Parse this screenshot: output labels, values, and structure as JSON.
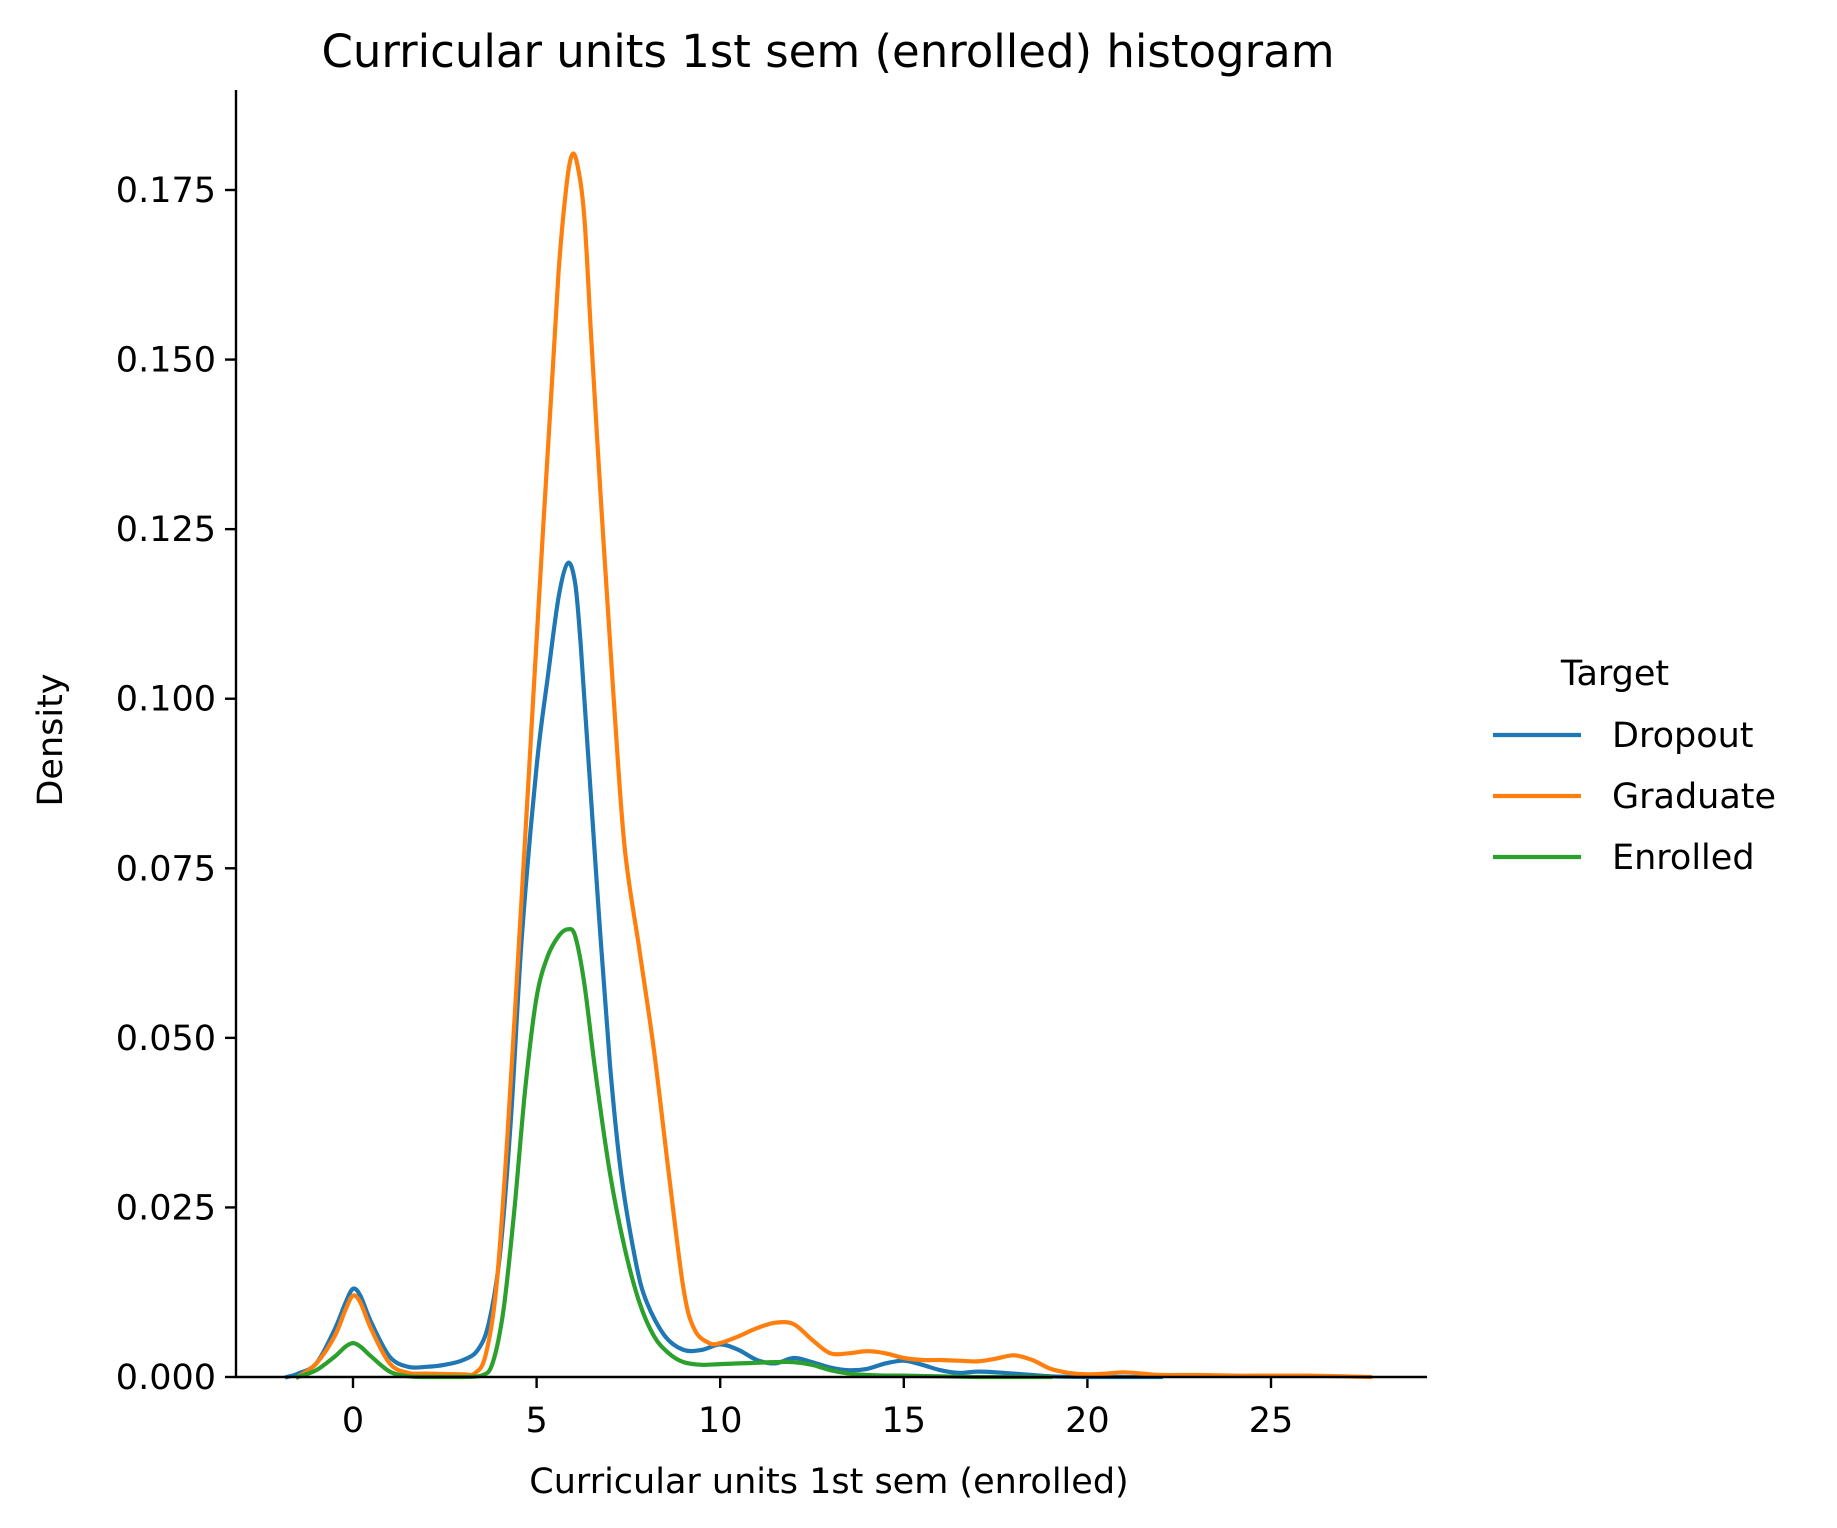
{
  "chart_data": {
    "type": "line",
    "title": "Curricular units 1st sem (enrolled) histogram",
    "xlabel": "Curricular units 1st sem (enrolled)",
    "ylabel": "Density",
    "xlim": [
      -3,
      29
    ],
    "ylim": [
      0,
      0.189
    ],
    "x_ticks": [
      0,
      5,
      10,
      15,
      20,
      25
    ],
    "x_tick_labels": [
      "0",
      "5",
      "10",
      "15",
      "20",
      "25"
    ],
    "y_ticks": [
      0,
      0.025,
      0.05,
      0.075,
      0.1,
      0.125,
      0.15,
      0.175
    ],
    "y_tick_labels": [
      "0.000",
      "0.025",
      "0.050",
      "0.075",
      "0.100",
      "0.125",
      "0.150",
      "0.175"
    ],
    "grid": false,
    "legend": {
      "title": "Target",
      "placement": "right"
    },
    "series": [
      {
        "name": "Dropout",
        "color": "#1f77b4",
        "points": [
          [
            -1.8,
            0.0
          ],
          [
            -1.5,
            0.0005
          ],
          [
            -1.0,
            0.002
          ],
          [
            -0.5,
            0.007
          ],
          [
            -0.2,
            0.011
          ],
          [
            0.0,
            0.013
          ],
          [
            0.2,
            0.012
          ],
          [
            0.5,
            0.008
          ],
          [
            1.0,
            0.003
          ],
          [
            1.5,
            0.0015
          ],
          [
            2.0,
            0.0015
          ],
          [
            2.5,
            0.0018
          ],
          [
            3.0,
            0.0025
          ],
          [
            3.4,
            0.004
          ],
          [
            3.7,
            0.008
          ],
          [
            4.0,
            0.018
          ],
          [
            4.3,
            0.038
          ],
          [
            4.6,
            0.065
          ],
          [
            5.0,
            0.09
          ],
          [
            5.3,
            0.103
          ],
          [
            5.6,
            0.115
          ],
          [
            5.85,
            0.12
          ],
          [
            6.05,
            0.117
          ],
          [
            6.2,
            0.108
          ],
          [
            6.4,
            0.092
          ],
          [
            6.7,
            0.068
          ],
          [
            7.0,
            0.046
          ],
          [
            7.3,
            0.03
          ],
          [
            7.7,
            0.017
          ],
          [
            8.0,
            0.011
          ],
          [
            8.5,
            0.006
          ],
          [
            9.0,
            0.004
          ],
          [
            9.5,
            0.004
          ],
          [
            10.0,
            0.0048
          ],
          [
            10.5,
            0.004
          ],
          [
            11.0,
            0.0025
          ],
          [
            11.5,
            0.002
          ],
          [
            12.0,
            0.0028
          ],
          [
            12.5,
            0.0022
          ],
          [
            13.0,
            0.0014
          ],
          [
            13.5,
            0.001
          ],
          [
            14.0,
            0.0012
          ],
          [
            14.5,
            0.002
          ],
          [
            15.0,
            0.0024
          ],
          [
            15.5,
            0.0018
          ],
          [
            16.0,
            0.001
          ],
          [
            16.5,
            0.0006
          ],
          [
            17.0,
            0.0008
          ],
          [
            17.5,
            0.0007
          ],
          [
            18.0,
            0.0005
          ],
          [
            18.5,
            0.0003
          ],
          [
            19.0,
            0.0001
          ],
          [
            20.0,
            0.0
          ],
          [
            21.0,
            0.0
          ],
          [
            22.0,
            0.0
          ]
        ]
      },
      {
        "name": "Graduate",
        "color": "#ff7f0e",
        "points": [
          [
            -1.5,
            0.0
          ],
          [
            -1.0,
            0.002
          ],
          [
            -0.5,
            0.006
          ],
          [
            -0.2,
            0.01
          ],
          [
            0.0,
            0.012
          ],
          [
            0.2,
            0.011
          ],
          [
            0.5,
            0.007
          ],
          [
            1.0,
            0.002
          ],
          [
            1.5,
            0.0006
          ],
          [
            2.0,
            0.0005
          ],
          [
            3.0,
            0.0004
          ],
          [
            3.3,
            0.0005
          ],
          [
            3.6,
            0.003
          ],
          [
            3.9,
            0.013
          ],
          [
            4.2,
            0.035
          ],
          [
            4.5,
            0.062
          ],
          [
            4.8,
            0.09
          ],
          [
            5.1,
            0.118
          ],
          [
            5.4,
            0.145
          ],
          [
            5.6,
            0.163
          ],
          [
            5.8,
            0.175
          ],
          [
            5.95,
            0.18
          ],
          [
            6.1,
            0.179
          ],
          [
            6.3,
            0.171
          ],
          [
            6.5,
            0.152
          ],
          [
            6.8,
            0.125
          ],
          [
            7.1,
            0.1
          ],
          [
            7.4,
            0.078
          ],
          [
            7.8,
            0.063
          ],
          [
            8.2,
            0.048
          ],
          [
            8.6,
            0.03
          ],
          [
            9.0,
            0.013
          ],
          [
            9.3,
            0.007
          ],
          [
            9.7,
            0.005
          ],
          [
            10.0,
            0.005
          ],
          [
            10.5,
            0.006
          ],
          [
            11.0,
            0.0072
          ],
          [
            11.5,
            0.008
          ],
          [
            12.0,
            0.0078
          ],
          [
            12.5,
            0.0055
          ],
          [
            13.0,
            0.0035
          ],
          [
            13.5,
            0.0035
          ],
          [
            14.0,
            0.0038
          ],
          [
            14.5,
            0.0035
          ],
          [
            15.0,
            0.0028
          ],
          [
            15.5,
            0.0025
          ],
          [
            16.0,
            0.0025
          ],
          [
            16.5,
            0.0024
          ],
          [
            17.0,
            0.0023
          ],
          [
            17.5,
            0.0027
          ],
          [
            18.0,
            0.0032
          ],
          [
            18.5,
            0.0025
          ],
          [
            19.0,
            0.0012
          ],
          [
            19.5,
            0.0006
          ],
          [
            20.0,
            0.0004
          ],
          [
            20.5,
            0.0005
          ],
          [
            21.0,
            0.0007
          ],
          [
            21.5,
            0.0005
          ],
          [
            22.0,
            0.0003
          ],
          [
            23.0,
            0.0003
          ],
          [
            24.0,
            0.0002
          ],
          [
            25.0,
            0.0002
          ],
          [
            26.0,
            0.0002
          ],
          [
            27.0,
            0.0001
          ],
          [
            27.7,
            0.0
          ]
        ]
      },
      {
        "name": "Enrolled",
        "color": "#2ca02c",
        "points": [
          [
            -1.5,
            0.0
          ],
          [
            -1.0,
            0.001
          ],
          [
            -0.5,
            0.003
          ],
          [
            -0.2,
            0.0045
          ],
          [
            0.0,
            0.005
          ],
          [
            0.2,
            0.0045
          ],
          [
            0.5,
            0.003
          ],
          [
            1.0,
            0.0008
          ],
          [
            1.5,
            0.0001
          ],
          [
            2.0,
            0.0
          ],
          [
            3.0,
            0.0
          ],
          [
            3.5,
            0.0002
          ],
          [
            3.8,
            0.002
          ],
          [
            4.1,
            0.01
          ],
          [
            4.4,
            0.025
          ],
          [
            4.7,
            0.043
          ],
          [
            5.0,
            0.056
          ],
          [
            5.3,
            0.062
          ],
          [
            5.6,
            0.065
          ],
          [
            5.85,
            0.066
          ],
          [
            6.05,
            0.065
          ],
          [
            6.3,
            0.058
          ],
          [
            6.6,
            0.045
          ],
          [
            7.0,
            0.03
          ],
          [
            7.4,
            0.019
          ],
          [
            7.8,
            0.011
          ],
          [
            8.2,
            0.006
          ],
          [
            8.6,
            0.0035
          ],
          [
            9.0,
            0.0022
          ],
          [
            9.5,
            0.0018
          ],
          [
            10.0,
            0.0019
          ],
          [
            10.5,
            0.002
          ],
          [
            11.0,
            0.0021
          ],
          [
            11.5,
            0.0022
          ],
          [
            12.0,
            0.0022
          ],
          [
            12.5,
            0.0018
          ],
          [
            13.0,
            0.001
          ],
          [
            13.5,
            0.0005
          ],
          [
            14.0,
            0.0003
          ],
          [
            14.5,
            0.0002
          ],
          [
            15.0,
            0.0002
          ],
          [
            16.0,
            0.0001
          ],
          [
            17.0,
            0.0
          ],
          [
            19.0,
            0.0
          ]
        ]
      }
    ]
  }
}
